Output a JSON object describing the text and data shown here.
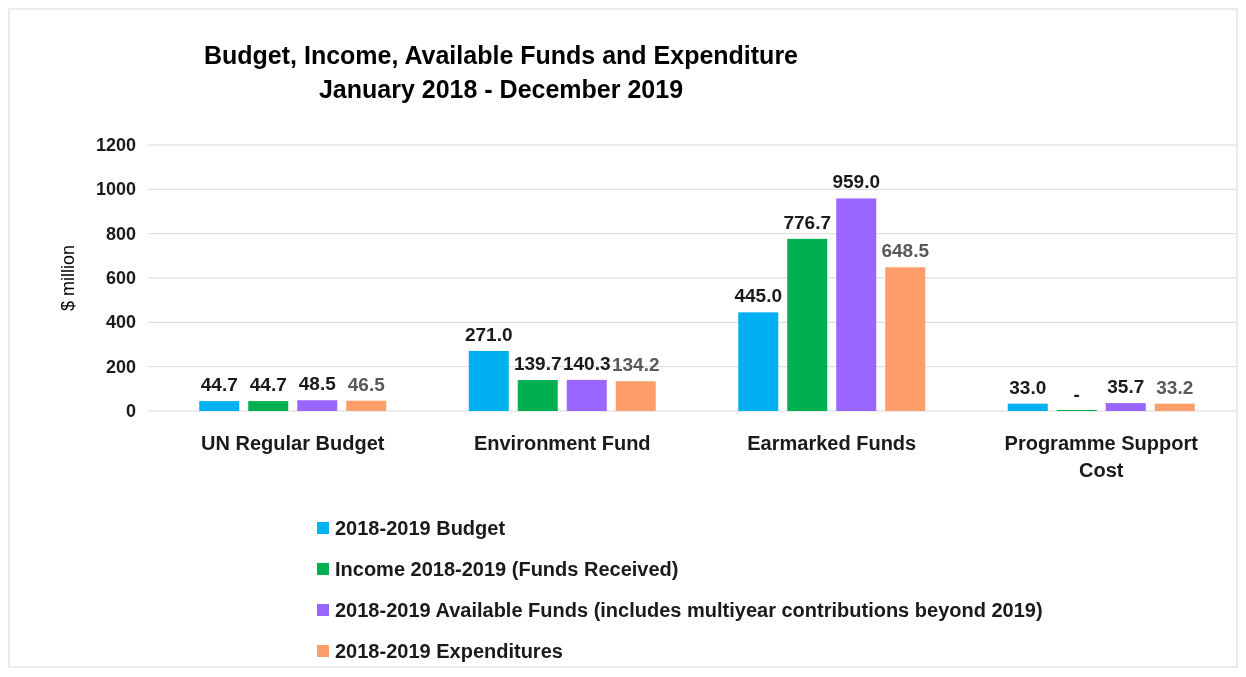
{
  "chart_data": {
    "type": "bar",
    "title": "Budget, Income, Available Funds and Expenditure\nJanuary 2018 - December 2019",
    "ylabel": "$ million",
    "categories": [
      "UN Regular Budget",
      "Environment Fund",
      "Earmarked Funds",
      "Programme Support Cost"
    ],
    "series": [
      {
        "name": "2018-2019 Budget",
        "color": "#00b0f0",
        "values": [
          44.7,
          271.0,
          445.0,
          33.0
        ],
        "value_labels": [
          "44.7",
          "271.0",
          "445.0",
          "33.0"
        ]
      },
      {
        "name": "Income 2018-2019 (Funds Received)",
        "color": "#00b050",
        "values": [
          44.7,
          139.7,
          776.7,
          0
        ],
        "value_labels": [
          "44.7",
          "139.7",
          "776.7",
          "-"
        ]
      },
      {
        "name": "2018-2019 Available Funds (includes multiyear contributions beyond 2019)",
        "color": "#9966ff",
        "values": [
          48.5,
          140.3,
          959.0,
          35.7
        ],
        "value_labels": [
          "48.5",
          "140.3",
          "959.0",
          "35.7"
        ]
      },
      {
        "name": "2018-2019 Expenditures",
        "color": "#ff9e6b",
        "values": [
          46.5,
          134.2,
          648.5,
          33.2
        ],
        "value_labels": [
          "46.5",
          "134.2",
          "648.5",
          "33.2"
        ]
      }
    ],
    "ylim": [
      0,
      1200
    ],
    "yticks": [
      0,
      200,
      400,
      600,
      800,
      1000,
      1200
    ],
    "grid": "y",
    "legend": "bottom"
  }
}
